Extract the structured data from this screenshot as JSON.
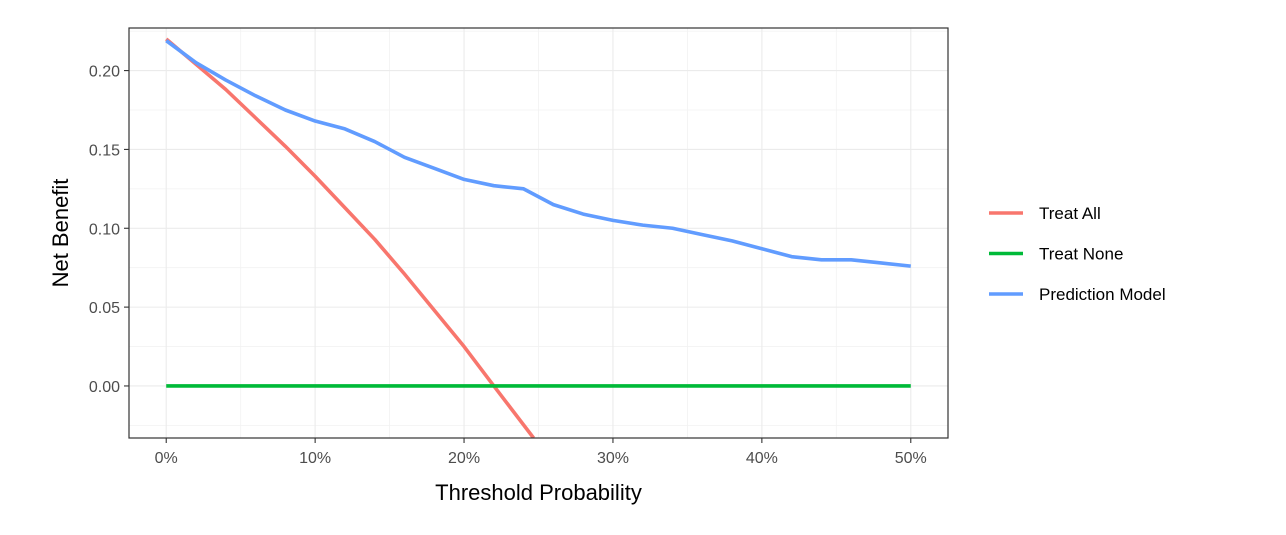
{
  "chart_data": {
    "type": "line",
    "xlabel": "Threshold Probability",
    "ylabel": "Net Benefit",
    "xlim": [
      -0.025,
      0.525
    ],
    "ylim": [
      -0.033,
      0.227
    ],
    "x_ticks": [
      0,
      0.1,
      0.2,
      0.3,
      0.4,
      0.5
    ],
    "x_tick_labels": [
      "0%",
      "10%",
      "20%",
      "30%",
      "40%",
      "50%"
    ],
    "y_ticks": [
      0.0,
      0.05,
      0.1,
      0.15,
      0.2
    ],
    "y_tick_labels": [
      "0.00",
      "0.05",
      "0.10",
      "0.15",
      "0.20"
    ],
    "grid": true,
    "legend_position": "right",
    "series": [
      {
        "name": "Treat All",
        "color": "#F8766D",
        "x": [
          0,
          0.02,
          0.04,
          0.06,
          0.08,
          0.1,
          0.12,
          0.14,
          0.16,
          0.18,
          0.2,
          0.22,
          0.2467
        ],
        "y": [
          0.22,
          0.204,
          0.188,
          0.17,
          0.152,
          0.133,
          0.113,
          0.093,
          0.071,
          0.048,
          0.025,
          0.0,
          -0.033
        ]
      },
      {
        "name": "Treat None",
        "color": "#00BA38",
        "x": [
          0,
          0.5
        ],
        "y": [
          0,
          0
        ]
      },
      {
        "name": "Prediction Model",
        "color": "#619CFF",
        "x": [
          0,
          0.02,
          0.04,
          0.06,
          0.08,
          0.1,
          0.12,
          0.14,
          0.16,
          0.18,
          0.2,
          0.22,
          0.24,
          0.26,
          0.28,
          0.3,
          0.32,
          0.34,
          0.36,
          0.38,
          0.4,
          0.42,
          0.44,
          0.46,
          0.48,
          0.5
        ],
        "y": [
          0.219,
          0.205,
          0.194,
          0.184,
          0.175,
          0.168,
          0.163,
          0.155,
          0.145,
          0.138,
          0.131,
          0.127,
          0.125,
          0.115,
          0.109,
          0.105,
          0.102,
          0.1,
          0.096,
          0.092,
          0.087,
          0.082,
          0.08,
          0.08,
          0.078,
          0.076
        ]
      }
    ]
  }
}
